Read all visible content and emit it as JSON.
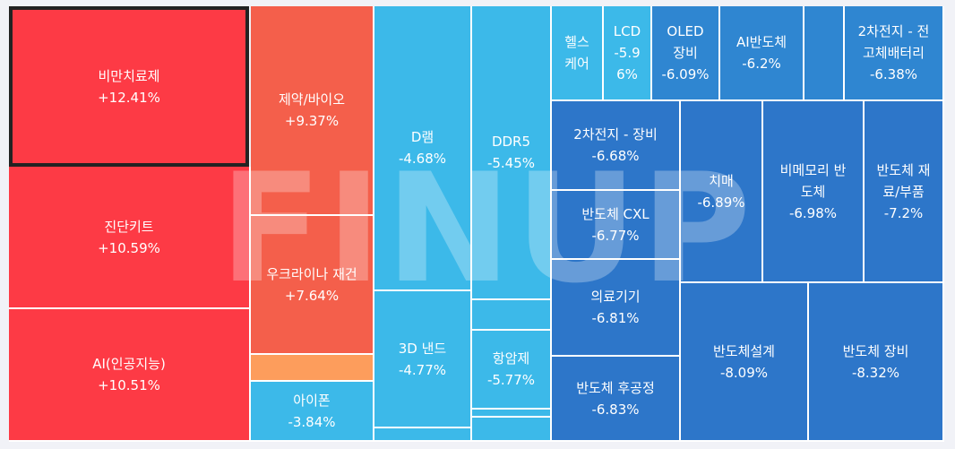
{
  "watermark": "FINUP",
  "colors": {
    "strong_gain": "#fd3a45",
    "gain": "#f45f4b",
    "small_gain": "#fd9d5c",
    "loss_light": "#3cb9e9",
    "loss_mid": "#2f86d1",
    "loss_dark": "#2d76c9"
  },
  "tiles": [
    {
      "name": "비만치료제",
      "change": "+12.41%"
    },
    {
      "name": "진단키트",
      "change": "+10.59%"
    },
    {
      "name": "AI(인공지능)",
      "change": "+10.51%"
    },
    {
      "name": "제약/바이오",
      "change": "+9.37%"
    },
    {
      "name": "우크라이나 재건",
      "change": "+7.64%"
    },
    {
      "name": "아이폰",
      "change": "-3.84%"
    },
    {
      "name": "D램",
      "change": "-4.68%"
    },
    {
      "name": "3D 낸드",
      "change": "-4.77%"
    },
    {
      "name": "DDR5",
      "change": "-5.45%"
    },
    {
      "name": "항암제",
      "change": "-5.77%"
    },
    {
      "name": "헬스\n케어",
      "change": ""
    },
    {
      "name": "LCD",
      "change": "-5.9\n6%"
    },
    {
      "name": "OLED\n장비",
      "change": "-6.09%"
    },
    {
      "name": "AI반도체",
      "change": "-6.2%"
    },
    {
      "name": "2차전지 - 전\n고체배터리",
      "change": "-6.38%"
    },
    {
      "name": "2차전지 - 장비",
      "change": "-6.68%"
    },
    {
      "name": "반도체 CXL",
      "change": "-6.77%"
    },
    {
      "name": "의료기기",
      "change": "-6.81%"
    },
    {
      "name": "반도체 후공정",
      "change": "-6.83%"
    },
    {
      "name": "치매",
      "change": "-6.89%"
    },
    {
      "name": "비메모리 반\n도체",
      "change": "-6.98%"
    },
    {
      "name": "반도체 재\n료/부품",
      "change": "-7.2%"
    },
    {
      "name": "반도체설계",
      "change": "-8.09%"
    },
    {
      "name": "반도체 장비",
      "change": "-8.32%"
    }
  ]
}
